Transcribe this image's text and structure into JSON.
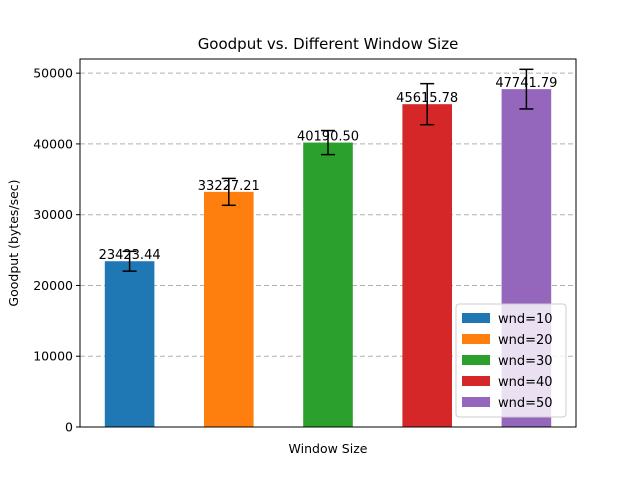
{
  "chart_data": {
    "type": "bar",
    "title": "Goodput vs. Different Window Size",
    "xlabel": "Window Size",
    "ylabel": "Goodput (bytes/sec)",
    "ylim": [
      0,
      52000
    ],
    "yticks": [
      0,
      10000,
      20000,
      30000,
      40000,
      50000
    ],
    "grid": "y-dashed",
    "legend_position": "lower-right",
    "series": [
      {
        "name": "wnd=10",
        "value": 23423.44,
        "label": "23423.44",
        "error": 1400,
        "color": "#1f77b4"
      },
      {
        "name": "wnd=20",
        "value": 33227.21,
        "label": "33227.21",
        "error": 1900,
        "color": "#ff7f0e"
      },
      {
        "name": "wnd=30",
        "value": 40190.5,
        "label": "40190.50",
        "error": 1700,
        "color": "#2ca02c"
      },
      {
        "name": "wnd=40",
        "value": 45615.78,
        "label": "45615.78",
        "error": 2900,
        "color": "#d62728"
      },
      {
        "name": "wnd=50",
        "value": 47741.79,
        "label": "47741.79",
        "error": 2800,
        "color": "#9467bd"
      }
    ]
  }
}
